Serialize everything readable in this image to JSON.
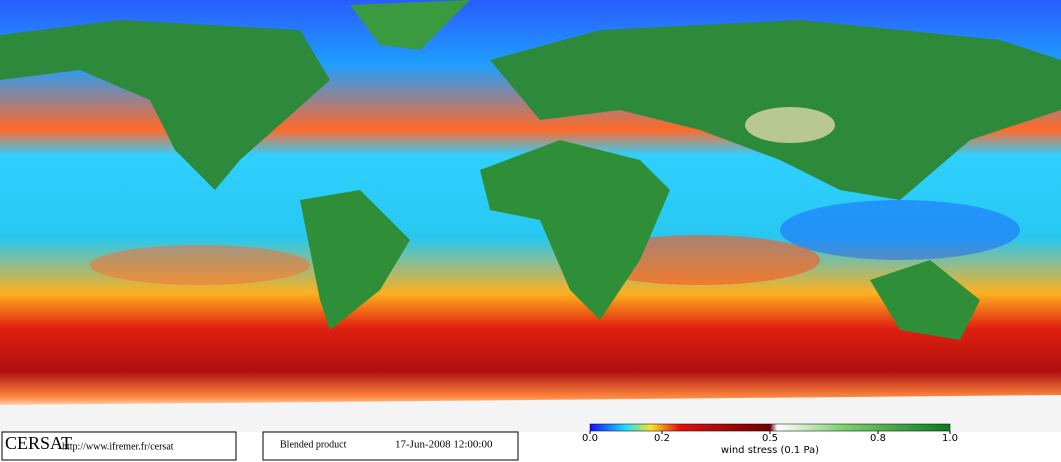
{
  "footer": {
    "logo": "CERSAT",
    "url": "http://www.ifremer.fr/cersat",
    "product": "Blended product",
    "date": "17-Jun-2008 12:00:00"
  },
  "colorbar": {
    "label": "wind stress (0.1 Pa)",
    "lim": [
      0,
      1
    ],
    "ticks": [
      {
        "value": 0,
        "label": "0.0"
      },
      0.2,
      0.5,
      0.8,
      {
        "value": 1,
        "label": "1.0"
      }
    ]
  }
}
